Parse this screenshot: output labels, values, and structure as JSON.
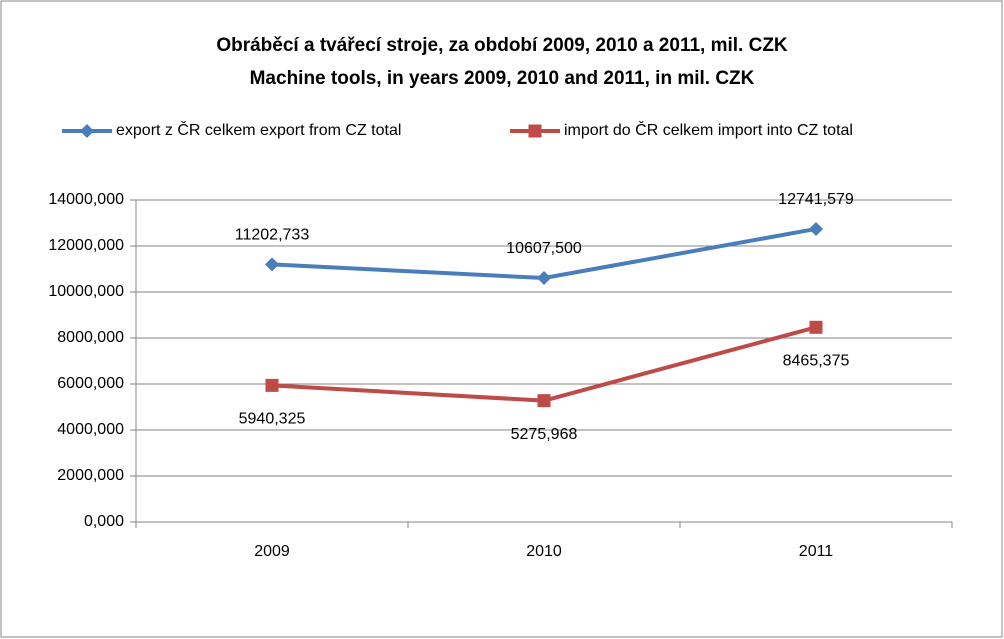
{
  "chart_data": {
    "type": "line",
    "title": "Obráběcí a tvářecí stroje, za období 2009, 2010 a 2011, mil. CZK",
    "subtitle": "Machine tools, in years 2009, 2010 and 2011, in mil. CZK",
    "categories": [
      "2009",
      "2010",
      "2011"
    ],
    "series": [
      {
        "name": "export z ČR celkem export from CZ total",
        "color": "#4a7ebb",
        "values": [
          11202.733,
          10607.5,
          12741.579
        ],
        "value_labels": [
          "11202,733",
          "10607,500",
          "12741,579"
        ]
      },
      {
        "name": "import do ČR celkem import into CZ total",
        "color": "#be4b48",
        "values": [
          5940.325,
          5275.968,
          8465.375
        ],
        "value_labels": [
          "5940,325",
          "5275,968",
          "8465,375"
        ]
      }
    ],
    "ylim": [
      0,
      14000
    ],
    "yticks": [
      {
        "value": 0,
        "label": "0,000"
      },
      {
        "value": 2000,
        "label": "2000,000"
      },
      {
        "value": 4000,
        "label": "4000,000"
      },
      {
        "value": 6000,
        "label": "6000,000"
      },
      {
        "value": 8000,
        "label": "8000,000"
      },
      {
        "value": 10000,
        "label": "10000,000"
      },
      {
        "value": 12000,
        "label": "12000,000"
      },
      {
        "value": 14000,
        "label": "14000,000"
      }
    ],
    "grid": true,
    "legend": "top"
  }
}
